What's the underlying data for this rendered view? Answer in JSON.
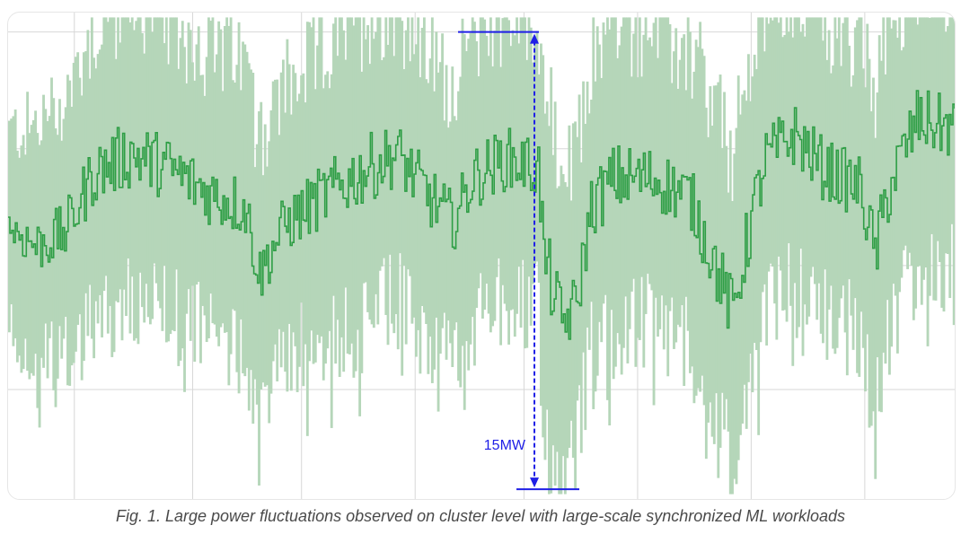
{
  "caption": "Fig. 1. Large power fluctuations observed on cluster level with large-scale synchronized ML workloads",
  "colors": {
    "band": "#b5d6b9",
    "line": "#2e9e45",
    "annotation": "#1f1fe6",
    "grid": "#d7d7d7"
  },
  "chart_data": {
    "type": "line",
    "title": "",
    "xlabel": "",
    "ylabel": "",
    "grid": true,
    "legend": "none",
    "ylim": [
      0,
      1
    ],
    "series": [
      {
        "name": "",
        "role": "range_band"
      },
      {
        "name": "",
        "role": "line"
      }
    ],
    "segments": [
      [
        0.0,
        0.56,
        0.08
      ],
      [
        0.03,
        0.52,
        0.1
      ],
      [
        0.06,
        0.55,
        0.11
      ],
      [
        0.09,
        0.67,
        0.12
      ],
      [
        0.13,
        0.71,
        0.13
      ],
      [
        0.17,
        0.68,
        0.12
      ],
      [
        0.21,
        0.63,
        0.12
      ],
      [
        0.25,
        0.6,
        0.12
      ],
      [
        0.265,
        0.46,
        0.11
      ],
      [
        0.29,
        0.56,
        0.11
      ],
      [
        0.33,
        0.62,
        0.12
      ],
      [
        0.38,
        0.68,
        0.13
      ],
      [
        0.41,
        0.71,
        0.12
      ],
      [
        0.445,
        0.62,
        0.12
      ],
      [
        0.47,
        0.57,
        0.11
      ],
      [
        0.49,
        0.66,
        0.12
      ],
      [
        0.525,
        0.7,
        0.12
      ],
      [
        0.56,
        0.68,
        0.12
      ],
      [
        0.565,
        0.5,
        0.15
      ],
      [
        0.585,
        0.36,
        0.12
      ],
      [
        0.6,
        0.4,
        0.12
      ],
      [
        0.615,
        0.6,
        0.12
      ],
      [
        0.64,
        0.66,
        0.13
      ],
      [
        0.68,
        0.66,
        0.12
      ],
      [
        0.72,
        0.62,
        0.12
      ],
      [
        0.765,
        0.38,
        0.13
      ],
      [
        0.785,
        0.58,
        0.13
      ],
      [
        0.8,
        0.7,
        0.12
      ],
      [
        0.83,
        0.75,
        0.12
      ],
      [
        0.86,
        0.68,
        0.12
      ],
      [
        0.9,
        0.64,
        0.12
      ],
      [
        0.915,
        0.5,
        0.13
      ],
      [
        0.93,
        0.64,
        0.13
      ],
      [
        0.96,
        0.78,
        0.12
      ],
      [
        1.0,
        0.76,
        0.12
      ]
    ],
    "annotations": [
      {
        "label": "15MW",
        "type": "double-arrow",
        "x": 0.556,
        "y_from": 0.04,
        "y_to": 0.98
      }
    ]
  }
}
